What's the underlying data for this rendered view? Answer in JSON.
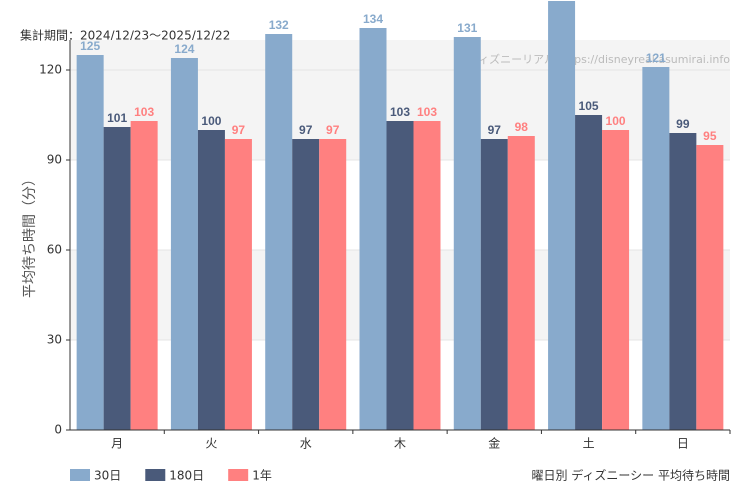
{
  "chart_data": {
    "type": "bar",
    "subtitle": "集計期間：2024/12/23～2025/12/22",
    "ylabel": "平均待ち時間（分）",
    "watermark": "ディズニーリアル https://disneyreal.asumirai.info",
    "footer": "曜日別 ディズニーシー 平均待ち時間",
    "categories": [
      "月",
      "火",
      "水",
      "木",
      "金",
      "土",
      "日"
    ],
    "series": [
      {
        "name": "30日",
        "color": "#88aacc",
        "values": [
          125,
          124,
          132,
          134,
          131,
          143,
          121
        ]
      },
      {
        "name": "180日",
        "color": "#4a5a7a",
        "values": [
          101,
          100,
          97,
          103,
          97,
          105,
          99
        ]
      },
      {
        "name": "1年",
        "color": "#ff8080",
        "values": [
          103,
          97,
          97,
          103,
          98,
          100,
          95
        ]
      }
    ],
    "ylim": [
      0,
      130
    ],
    "yticks": [
      0,
      30,
      60,
      90,
      120
    ],
    "grid": true
  }
}
